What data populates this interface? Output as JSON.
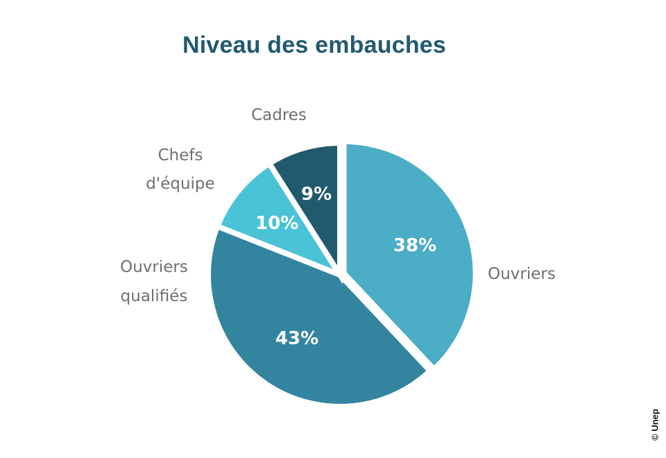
{
  "chart_data": {
    "type": "pie",
    "title": "Niveau des embauches",
    "slices": [
      {
        "label": "Ouvriers",
        "value": 38,
        "value_label": "38%",
        "color": "#4badc6"
      },
      {
        "label": "Ouvriers qualifiés",
        "value": 43,
        "value_label": "43%",
        "color": "#33859f"
      },
      {
        "label": "Chefs d'équipe",
        "value": 10,
        "value_label": "10%",
        "color": "#4bc3d6"
      },
      {
        "label": "Cadres",
        "value": 9,
        "value_label": "9%",
        "color": "#215a6c"
      }
    ],
    "slice_order": "clockwise from 12 o'clock",
    "legend": "none"
  },
  "credit": "© Unep"
}
